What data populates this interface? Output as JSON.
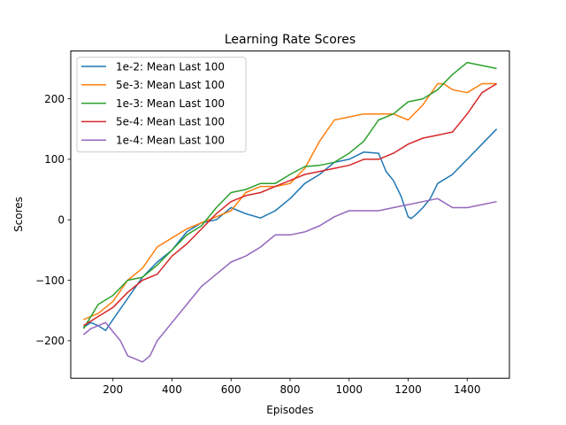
{
  "chart_data": {
    "type": "line",
    "title": "Learning Rate Scores",
    "xlabel": "Episodes",
    "ylabel": "Scores",
    "xlim": [
      57,
      1543
    ],
    "ylim": [
      -262,
      279
    ],
    "xticks": [
      200,
      400,
      600,
      800,
      1000,
      1200,
      1400
    ],
    "yticks": [
      -200,
      -100,
      0,
      100,
      200
    ],
    "grid": false,
    "legend_position": "upper left",
    "series": [
      {
        "name": "1e-2: Mean Last 100",
        "color": "#1f77b4",
        "x": [
          100,
          125,
          150,
          175,
          200,
          250,
          300,
          350,
          400,
          450,
          500,
          550,
          600,
          625,
          650,
          700,
          750,
          800,
          850,
          900,
          950,
          1000,
          1050,
          1100,
          1125,
          1150,
          1175,
          1200,
          1210,
          1225,
          1250,
          1275,
          1300,
          1350,
          1400,
          1450,
          1500
        ],
        "y": [
          -178,
          -170,
          -175,
          -183,
          -165,
          -130,
          -95,
          -70,
          -50,
          -20,
          -5,
          0,
          20,
          15,
          10,
          3,
          15,
          35,
          60,
          75,
          95,
          100,
          112,
          110,
          80,
          65,
          40,
          5,
          2,
          8,
          20,
          35,
          60,
          75,
          100,
          125,
          150
        ]
      },
      {
        "name": "5e-3: Mean Last 100",
        "color": "#ff7f0e",
        "x": [
          100,
          150,
          200,
          250,
          300,
          350,
          400,
          450,
          500,
          550,
          600,
          650,
          700,
          750,
          800,
          850,
          900,
          950,
          1000,
          1050,
          1100,
          1150,
          1200,
          1250,
          1300,
          1320,
          1350,
          1400,
          1450,
          1500
        ],
        "y": [
          -165,
          -155,
          -135,
          -100,
          -80,
          -45,
          -30,
          -15,
          -5,
          5,
          15,
          45,
          55,
          55,
          60,
          85,
          130,
          165,
          170,
          175,
          175,
          175,
          165,
          190,
          225,
          225,
          215,
          210,
          225,
          225
        ]
      },
      {
        "name": "1e-3: Mean Last 100",
        "color": "#2ca02c",
        "x": [
          100,
          150,
          200,
          250,
          300,
          350,
          400,
          450,
          500,
          550,
          600,
          650,
          700,
          750,
          800,
          850,
          900,
          950,
          1000,
          1050,
          1100,
          1150,
          1200,
          1250,
          1300,
          1350,
          1400,
          1450,
          1500
        ],
        "y": [
          -180,
          -140,
          -125,
          -100,
          -95,
          -75,
          -50,
          -25,
          -10,
          20,
          45,
          50,
          60,
          60,
          75,
          88,
          90,
          95,
          110,
          130,
          165,
          175,
          195,
          200,
          215,
          240,
          260,
          255,
          250
        ]
      },
      {
        "name": "5e-4: Mean Last 100",
        "color": "#d62728",
        "x": [
          100,
          150,
          200,
          250,
          300,
          350,
          400,
          450,
          500,
          550,
          600,
          650,
          700,
          750,
          800,
          850,
          900,
          950,
          1000,
          1050,
          1100,
          1150,
          1200,
          1250,
          1300,
          1350,
          1400,
          1450,
          1500
        ],
        "y": [
          -175,
          -160,
          -145,
          -120,
          -100,
          -90,
          -60,
          -40,
          -15,
          10,
          30,
          40,
          45,
          55,
          65,
          75,
          80,
          85,
          90,
          100,
          100,
          110,
          125,
          135,
          140,
          145,
          175,
          210,
          225
        ]
      },
      {
        "name": "1e-4: Mean Last 100",
        "color": "#9467bd",
        "x": [
          100,
          125,
          150,
          175,
          200,
          225,
          250,
          275,
          300,
          325,
          350,
          400,
          450,
          500,
          550,
          600,
          650,
          700,
          750,
          800,
          850,
          900,
          950,
          1000,
          1050,
          1100,
          1150,
          1200,
          1250,
          1300,
          1350,
          1400,
          1450,
          1500
        ],
        "y": [
          -190,
          -180,
          -175,
          -170,
          -185,
          -200,
          -225,
          -230,
          -235,
          -225,
          -200,
          -170,
          -140,
          -110,
          -90,
          -70,
          -60,
          -45,
          -25,
          -25,
          -20,
          -10,
          5,
          15,
          15,
          15,
          20,
          25,
          30,
          35,
          20,
          20,
          25,
          30
        ]
      }
    ]
  }
}
